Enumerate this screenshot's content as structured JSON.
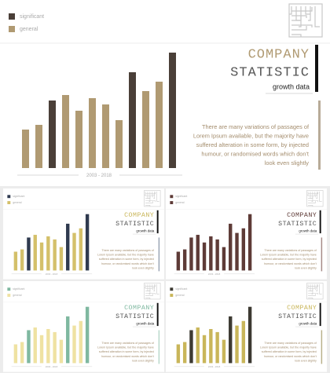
{
  "legend": [
    "significant",
    "general"
  ],
  "title_1": "COMPANY",
  "title_2": "STATISTIC",
  "subtitle": "growth data",
  "body_lines": [
    "There are many variations of passages of",
    "Lorem Ipsum available, but the majority have",
    "suffered alteration in some form, by injected",
    "humour, or randomised words which don't",
    "look even slightly"
  ],
  "axis_label": "2003 - 2018",
  "chart_data": {
    "type": "bar",
    "values": [
      49,
      55,
      86,
      93,
      73,
      89,
      81,
      61,
      122,
      98,
      110,
      147
    ],
    "bar_series": [
      1,
      1,
      0,
      1,
      1,
      1,
      1,
      1,
      0,
      1,
      1,
      0
    ],
    "ylim": [
      0,
      150
    ]
  },
  "themes": [
    {
      "significant": "#4a3f38",
      "general": "#b09a72",
      "title": "#b09a72",
      "accent": "#b8ab98"
    },
    {
      "significant": "#2f3a4f",
      "general": "#d4c06a",
      "title": "#c9b65a",
      "accent": "#9aa4b4"
    },
    {
      "significant": "#5e3b37",
      "general": "#5e3b37",
      "title": "#5e3b37",
      "accent": "#a58a86"
    },
    {
      "significant": "#7fb8a0",
      "general": "#efe2a2",
      "title": "#7fb8a0",
      "accent": "#b8d8ca"
    },
    {
      "significant": "#3d3a32",
      "general": "#c9b65a",
      "title": "#c9b65a",
      "accent": "#b9b08a"
    }
  ]
}
